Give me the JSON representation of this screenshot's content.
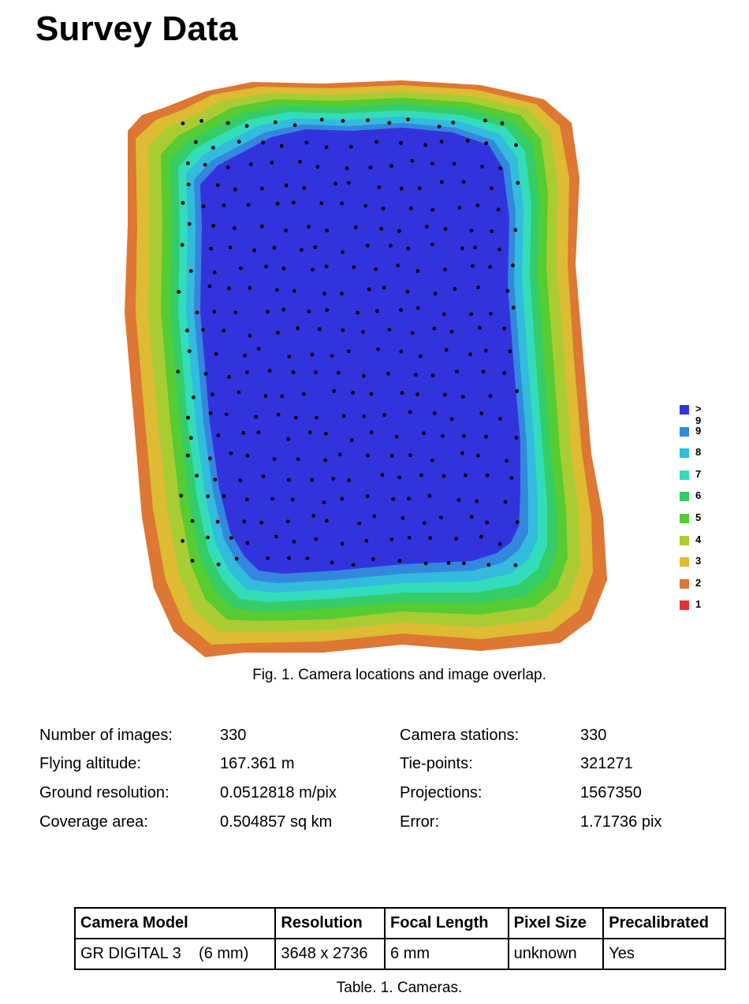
{
  "title": "Survey Data",
  "figure": {
    "caption": "Fig. 1. Camera locations and image overlap.",
    "legend": [
      {
        "label": "> 9",
        "color": "#3333dd"
      },
      {
        "label": "9",
        "color": "#3388dd"
      },
      {
        "label": "8",
        "color": "#33bbdd"
      },
      {
        "label": "7",
        "color": "#33ddbb"
      },
      {
        "label": "6",
        "color": "#33cc66"
      },
      {
        "label": "5",
        "color": "#55cc33"
      },
      {
        "label": "4",
        "color": "#aacc33"
      },
      {
        "label": "3",
        "color": "#ddbb33"
      },
      {
        "label": "2",
        "color": "#dd7733"
      },
      {
        "label": "1",
        "color": "#dd3333"
      }
    ]
  },
  "stats": {
    "left": [
      {
        "label": "Number of images:",
        "value": "330"
      },
      {
        "label": "Flying altitude:",
        "value": "167.361 m"
      },
      {
        "label": "Ground resolution:",
        "value": "0.0512818 m/pix"
      },
      {
        "label": "Coverage area:",
        "value": "0.504857 sq km"
      }
    ],
    "right": [
      {
        "label": "Camera stations:",
        "value": "330"
      },
      {
        "label": "Tie-points:",
        "value": "321271"
      },
      {
        "label": "Projections:",
        "value": "1567350"
      },
      {
        "label": "Error:",
        "value": "1.71736 pix"
      }
    ]
  },
  "table": {
    "headers": [
      "Camera Model",
      "Resolution",
      "Focal Length",
      "Pixel Size",
      "Precalibrated"
    ],
    "rows": [
      [
        "GR DIGITAL 3    (6 mm)",
        "3648 x 2736",
        "6 mm",
        "unknown",
        "Yes"
      ]
    ],
    "caption": "Table. 1. Cameras."
  }
}
